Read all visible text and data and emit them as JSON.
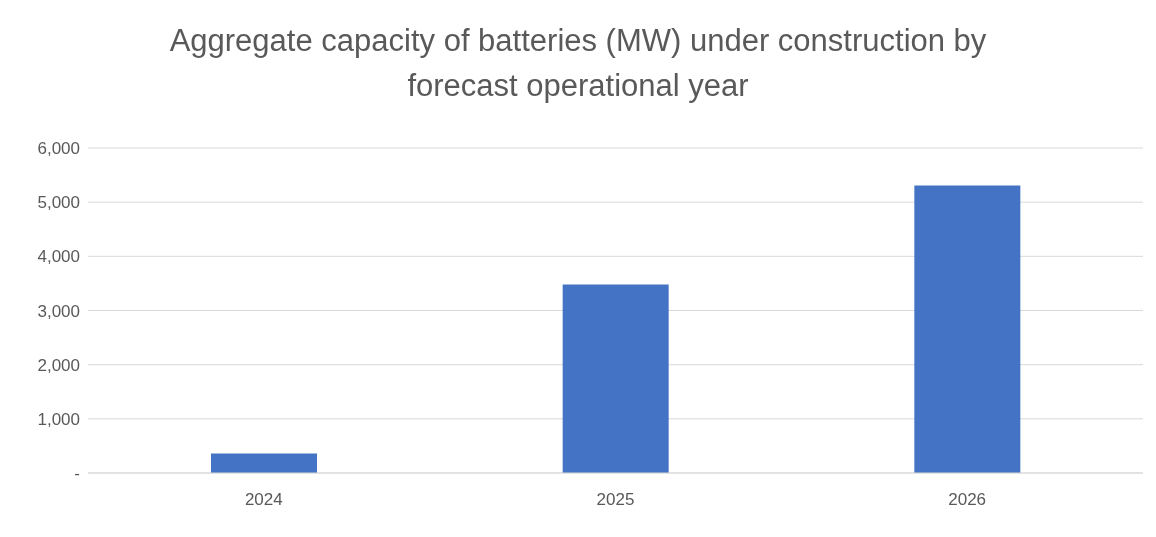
{
  "chart_data": {
    "type": "bar",
    "title": "Aggregate capacity of batteries (MW) under construction by forecast operational year",
    "categories": [
      "2024",
      "2025",
      "2026"
    ],
    "values": [
      360,
      3480,
      5310
    ],
    "color": "#4472c4",
    "ylim": [
      0,
      6000
    ],
    "yticks": [
      {
        "value": 0,
        "label": "-"
      },
      {
        "value": 1000,
        "label": "1,000"
      },
      {
        "value": 2000,
        "label": "2,000"
      },
      {
        "value": 3000,
        "label": "3,000"
      },
      {
        "value": 4000,
        "label": "4,000"
      },
      {
        "value": 5000,
        "label": "5,000"
      },
      {
        "value": 6000,
        "label": "6,000"
      }
    ],
    "grid": "y"
  }
}
